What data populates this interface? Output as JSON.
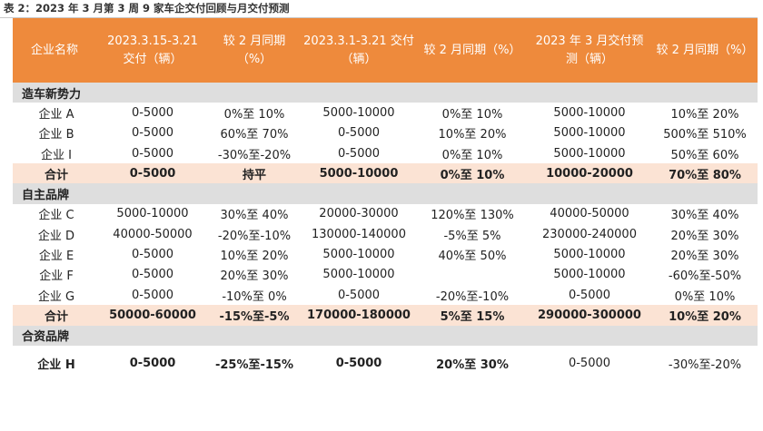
{
  "caption": "表 2：2023 年 3 月第 3 周 9 家车企交付回顾与月交付预测",
  "headers": [
    "企业名称",
    "2023.3.15-3.21 交付（辆）",
    "较 2 月同期（%）",
    "2023.3.1-3.21 交付（辆）",
    "较 2 月同期（%）",
    "2023 年 3 月交付预测（辆）",
    "较 2 月同期（%）"
  ],
  "sections": [
    {
      "name": "造车新势力",
      "rows": [
        [
          "企业 A",
          "0-5000",
          "0%至 10%",
          "5000-10000",
          "0%至 10%",
          "5000-10000",
          "10%至 20%"
        ],
        [
          "企业 B",
          "0-5000",
          "60%至 70%",
          "0-5000",
          "10%至 20%",
          "5000-10000",
          "500%至 510%"
        ],
        [
          "企业 I",
          "0-5000",
          "-30%至-20%",
          "0-5000",
          "0%至 10%",
          "5000-10000",
          "50%至 60%"
        ]
      ],
      "total": [
        "合计",
        "0-5000",
        "持平",
        "5000-10000",
        "0%至 10%",
        "10000-20000",
        "70%至 80%"
      ]
    },
    {
      "name": "自主品牌",
      "rows": [
        [
          "企业 C",
          "5000-10000",
          "30%至 40%",
          "20000-30000",
          "120%至 130%",
          "40000-50000",
          "30%至 40%"
        ],
        [
          "企业 D",
          "40000-50000",
          "-20%至-10%",
          "130000-140000",
          "-5%至 5%",
          "230000-240000",
          "20%至 30%"
        ],
        [
          "企业 E",
          "0-5000",
          "10%至 20%",
          "5000-10000",
          "40%至 50%",
          "5000-10000",
          "20%至 30%"
        ],
        [
          "企业 F",
          "0-5000",
          "20%至 30%",
          "5000-10000",
          "",
          "5000-10000",
          "-60%至-50%"
        ],
        [
          "企业 G",
          "0-5000",
          "-10%至 0%",
          "0-5000",
          "-20%至-10%",
          "0-5000",
          "0%至 10%"
        ]
      ],
      "total": [
        "合计",
        "50000-60000",
        "-15%至-5%",
        "170000-180000",
        "5%至 15%",
        "290000-300000",
        "10%至 20%"
      ]
    },
    {
      "name": "合资品牌",
      "rows": [
        [
          "企业 H",
          "0-5000",
          "-25%至-15%",
          "0-5000",
          "20%至 30%",
          "0-5000",
          "-30%至-20%"
        ]
      ]
    }
  ]
}
